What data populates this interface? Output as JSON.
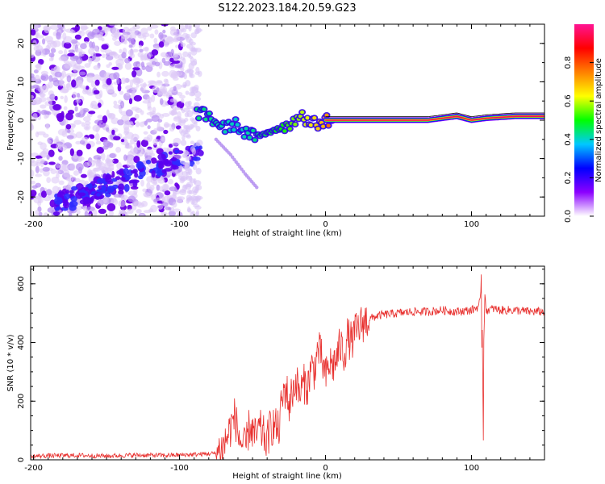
{
  "figure": {
    "title": "S122.2023.184.20.59.G23"
  },
  "chart_data": [
    {
      "type": "heatmap",
      "title": "",
      "xlabel": "Height of straight line (km)",
      "ylabel": "Frequency (Hz)",
      "xlim": [
        -202,
        150
      ],
      "ylim": [
        -25,
        25
      ],
      "x_ticks": [
        -200,
        -100,
        0,
        100
      ],
      "y_ticks": [
        -20,
        -10,
        0,
        10,
        20
      ],
      "grid": false,
      "colorbar": {
        "label": "Normalized spectral amplitude",
        "range": [
          0,
          1
        ],
        "ticks": [
          0.0,
          0.2,
          0.4,
          0.6,
          0.8
        ],
        "colormap": [
          "#ffffff",
          "#8b00ff",
          "#0000ff",
          "#00c8ff",
          "#00ff00",
          "#ffff00",
          "#ff8000",
          "#ff0000",
          "#ff1493"
        ]
      },
      "noise_region": {
        "x_range": [
          -202,
          -98
        ],
        "freq_range": [
          -25,
          25
        ],
        "amplitude": 0.15
      },
      "signal_track": [
        {
          "x": -88,
          "freq": 2.0
        },
        {
          "x": -80,
          "freq": 1.0
        },
        {
          "x": -74,
          "freq": -1.0
        },
        {
          "x": -68,
          "freq": -2.0
        },
        {
          "x": -62,
          "freq": -1.0
        },
        {
          "x": -56,
          "freq": -3.0
        },
        {
          "x": -50,
          "freq": -4.0
        },
        {
          "x": -45,
          "freq": -5.0
        },
        {
          "x": -40,
          "freq": -3.0
        },
        {
          "x": -34,
          "freq": -2.0
        },
        {
          "x": -28,
          "freq": -1.5
        },
        {
          "x": -22,
          "freq": -0.5
        },
        {
          "x": -17,
          "freq": 2.0
        },
        {
          "x": -12,
          "freq": -0.5
        },
        {
          "x": -6,
          "freq": -1.0
        },
        {
          "x": 0,
          "freq": 0.0
        },
        {
          "x": 10,
          "freq": 0.0
        },
        {
          "x": 40,
          "freq": 0.0
        },
        {
          "x": 70,
          "freq": 0.0
        },
        {
          "x": 80,
          "freq": 0.5
        },
        {
          "x": 90,
          "freq": 1.0
        },
        {
          "x": 100,
          "freq": 0.0
        },
        {
          "x": 110,
          "freq": 0.5
        },
        {
          "x": 130,
          "freq": 1.0
        },
        {
          "x": 150,
          "freq": 1.0
        }
      ],
      "diagonal_feature": [
        {
          "x": -75,
          "freq": -5.0
        },
        {
          "x": -65,
          "freq": -9.0
        },
        {
          "x": -55,
          "freq": -14.0
        },
        {
          "x": -46,
          "freq": -18.0
        }
      ],
      "ridge_amplitude": [
        {
          "x": -88,
          "value": 0.35
        },
        {
          "x": -60,
          "value": 0.3
        },
        {
          "x": -30,
          "value": 0.4
        },
        {
          "x": 0,
          "value": 0.6
        },
        {
          "x": 10,
          "value": 0.9
        },
        {
          "x": 70,
          "value": 0.95
        },
        {
          "x": 100,
          "value": 0.8
        },
        {
          "x": 150,
          "value": 0.85
        }
      ]
    },
    {
      "type": "line",
      "title": "",
      "xlabel": "Height of straight line (km)",
      "ylabel": "SNR (10 * v/v)",
      "xlim": [
        -202,
        150
      ],
      "ylim": [
        0,
        660
      ],
      "x_ticks": [
        -200,
        -100,
        0,
        100
      ],
      "y_ticks": [
        0,
        200,
        400,
        600
      ],
      "grid": false,
      "series": [
        {
          "color": "#e8312f",
          "x": [
            -202,
            -190,
            -170,
            -150,
            -130,
            -110,
            -90,
            -75,
            -70,
            -65,
            -62,
            -60,
            -58,
            -55,
            -52,
            -48,
            -45,
            -42,
            -40,
            -38,
            -35,
            -32,
            -30,
            -27,
            -25,
            -23,
            -20,
            -18,
            -15,
            -12,
            -10,
            -8,
            -5,
            -3,
            0,
            3,
            5,
            8,
            10,
            13,
            15,
            18,
            20,
            23,
            25,
            28,
            30,
            35,
            40,
            50,
            60,
            70,
            80,
            90,
            100,
            104,
            106,
            107,
            108,
            109,
            110,
            115,
            120,
            130,
            140,
            150
          ],
          "values": [
            12,
            14,
            15,
            13,
            16,
            15,
            18,
            22,
            45,
            110,
            150,
            90,
            60,
            35,
            120,
            75,
            105,
            80,
            60,
            110,
            120,
            95,
            200,
            250,
            180,
            230,
            270,
            220,
            260,
            250,
            320,
            300,
            380,
            350,
            280,
            330,
            320,
            350,
            390,
            360,
            420,
            400,
            430,
            450,
            465,
            475,
            480,
            490,
            495,
            500,
            505,
            505,
            510,
            505,
            510,
            520,
            540,
            600,
            180,
            560,
            510,
            515,
            510,
            510,
            505,
            505
          ]
        }
      ]
    }
  ]
}
